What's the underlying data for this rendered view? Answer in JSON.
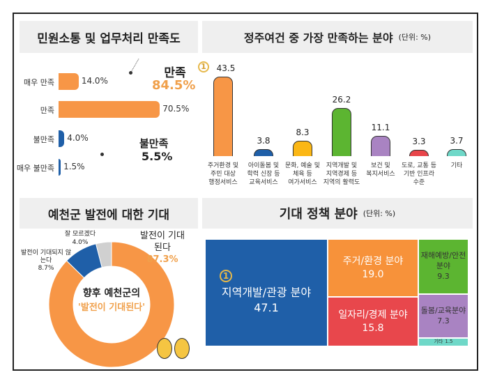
{
  "panels": {
    "satisfaction": {
      "title": "민원소통 및 업무처리 만족도",
      "summary_pos": {
        "label": "만족",
        "value": "84.5%"
      },
      "summary_neg": {
        "label": "불만족",
        "value": "5.5%"
      }
    },
    "living": {
      "title": "정주여건 중 가장 만족하는 분야",
      "unit": "(단위: %)",
      "rank_badge": "1"
    },
    "expectation": {
      "title": "예천군 발전에 대한 기대",
      "center_line1": "향후 예천군의",
      "center_line2": "'발전이 기대된다'"
    },
    "policy": {
      "title": "기대 정책 분야",
      "unit": "(단위: %)",
      "rank_badge": "1"
    }
  },
  "chart_data": [
    {
      "type": "bar",
      "orientation": "horizontal",
      "categories": [
        "매우 만족",
        "만족",
        "불만족",
        "매우 불만족"
      ],
      "values": [
        14.0,
        70.5,
        4.0,
        1.5
      ],
      "labels": [
        "14.0%",
        "70.5%",
        "4.0%",
        "1.5%"
      ],
      "colors": [
        "#f79646",
        "#f79646",
        "#1f5fa8",
        "#1f5fa8"
      ]
    },
    {
      "type": "bar",
      "categories": [
        "주거환경 및\n주민 대상\n행정서비스",
        "아이돌봄 및\n학력 신장 등\n교육서비스",
        "문화, 예술 및\n체육 등\n여가서비스",
        "지역개발 및\n지역경제 등\n지역의 활력도",
        "보건 및\n복지서비스",
        "도로, 교통 등\n기반 인프라\n수준",
        "기타"
      ],
      "values": [
        43.5,
        3.8,
        8.3,
        26.2,
        11.1,
        3.3,
        3.7
      ],
      "colors": [
        "#f79646",
        "#1f5fa8",
        "#fbb715",
        "#5cb531",
        "#a983c2",
        "#e8454a",
        "#6fd8c8"
      ]
    },
    {
      "type": "pie",
      "donut": true,
      "categories": [
        "발전이 기대된다",
        "발전이 기대되지 않는다",
        "잘 모르겠다"
      ],
      "values": [
        87.3,
        8.7,
        4.0
      ],
      "labels": [
        "87.3%",
        "8.7%",
        "4.0%"
      ],
      "colors": [
        "#f79646",
        "#1f5fa8",
        "#d0d0d0"
      ]
    },
    {
      "type": "treemap",
      "categories": [
        "지역개발/관광 분야",
        "주거/환경 분야",
        "일자리/경제 분야",
        "재해예방/안전분야",
        "돌봄/교육분야",
        "기타"
      ],
      "values": [
        47.1,
        19.0,
        15.8,
        9.3,
        7.3,
        1.5
      ],
      "colors": [
        "#1f5fa8",
        "#f7923a",
        "#e8474c",
        "#5cb531",
        "#a983c2",
        "#6fd8c8"
      ]
    }
  ]
}
